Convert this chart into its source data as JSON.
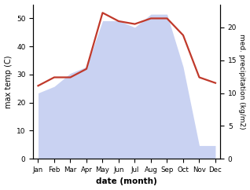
{
  "months": [
    "Jan",
    "Feb",
    "Mar",
    "Apr",
    "May",
    "Jun",
    "Jul",
    "Aug",
    "Sep",
    "Oct",
    "Nov",
    "Dec"
  ],
  "month_positions": [
    0,
    1,
    2,
    3,
    4,
    5,
    6,
    7,
    8,
    9,
    10,
    11
  ],
  "temp": [
    26,
    29,
    29,
    32,
    52,
    49,
    48,
    50,
    50,
    44,
    29,
    27
  ],
  "precip": [
    10,
    11,
    13,
    14,
    21,
    21,
    20,
    22,
    22,
    14,
    2,
    2
  ],
  "temp_color": "#c0392b",
  "precip_fill_color": "#b8c4ee",
  "temp_ylim": [
    0,
    55
  ],
  "precip_ylim": [
    0,
    23.5
  ],
  "temp_yticks": [
    0,
    10,
    20,
    30,
    40,
    50
  ],
  "precip_yticks": [
    0,
    5,
    10,
    15,
    20
  ],
  "ylabel_left": "max temp (C)",
  "ylabel_right": "med. precipitation (kg/m2)",
  "xlabel": "date (month)",
  "figsize": [
    3.18,
    2.42
  ],
  "dpi": 100
}
